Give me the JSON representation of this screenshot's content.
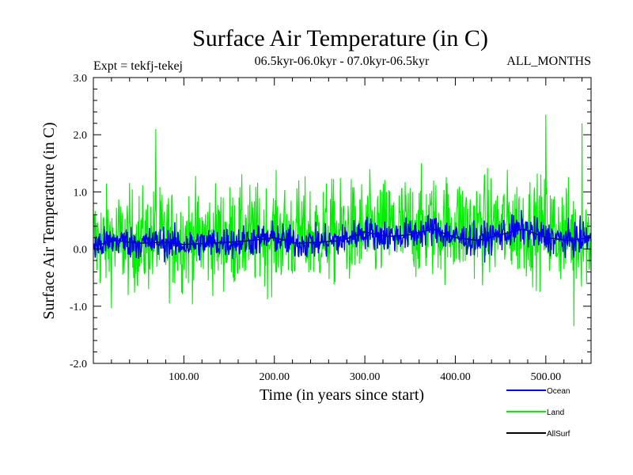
{
  "chart_data": {
    "type": "line",
    "title": "Surface Air Temperature (in C)",
    "subtitle_left": "Expt = tekfj-tekej",
    "subtitle_center": "06.5kyr-06.0kyr - 07.0kyr-06.5kyr",
    "subtitle_right": "ALL_MONTHS",
    "xlabel": "Time (in years since start)",
    "ylabel": "Surface Air Temperature (in C)",
    "xlim": [
      0,
      550
    ],
    "ylim": [
      -2.0,
      3.0
    ],
    "x_ticks": [
      {
        "value": 100,
        "label": "100.00"
      },
      {
        "value": 200,
        "label": "200.00"
      },
      {
        "value": 300,
        "label": "300.00"
      },
      {
        "value": 400,
        "label": "400.00"
      },
      {
        "value": 500,
        "label": "500.00"
      }
    ],
    "y_ticks": [
      {
        "value": -2.0,
        "label": "-2.0"
      },
      {
        "value": -1.0,
        "label": "-1.0"
      },
      {
        "value": 0.0,
        "label": "0.0"
      },
      {
        "value": 1.0,
        "label": "1.0"
      },
      {
        "value": 2.0,
        "label": "2.0"
      },
      {
        "value": 3.0,
        "label": "3.0"
      }
    ],
    "series": [
      {
        "name": "Land",
        "color": "#00ee00",
        "x": [
          0,
          15,
          30,
          45,
          60,
          69,
          75,
          90,
          105,
          120,
          135,
          150,
          165,
          180,
          195,
          210,
          225,
          240,
          255,
          270,
          285,
          300,
          315,
          330,
          345,
          360,
          375,
          390,
          405,
          420,
          435,
          450,
          465,
          477,
          490,
          500,
          510,
          520,
          531,
          540,
          550
        ],
        "values": [
          0.05,
          0.1,
          0.2,
          0.15,
          0.1,
          2.1,
          0.2,
          0.15,
          0.25,
          0.1,
          0.05,
          0.2,
          0.25,
          0.15,
          0.3,
          0.1,
          0.2,
          0.15,
          0.05,
          0.3,
          0.35,
          0.5,
          0.3,
          0.4,
          0.45,
          0.3,
          0.35,
          0.2,
          0.15,
          0.2,
          0.25,
          0.3,
          0.35,
          0.5,
          0.45,
          2.35,
          0.2,
          0.15,
          -1.35,
          2.2,
          0.3
        ]
      },
      {
        "name": "Ocean",
        "color": "#0000ee",
        "x": [
          0,
          25,
          50,
          75,
          100,
          125,
          150,
          175,
          200,
          225,
          250,
          275,
          300,
          325,
          350,
          375,
          400,
          425,
          450,
          475,
          500,
          525,
          550
        ],
        "values": [
          0.05,
          0.15,
          0.1,
          0.12,
          0.08,
          0.1,
          0.12,
          0.15,
          0.2,
          0.1,
          0.12,
          0.15,
          0.3,
          0.22,
          0.25,
          0.35,
          0.2,
          0.15,
          0.25,
          0.35,
          0.2,
          0.15,
          0.2
        ]
      },
      {
        "name": "AllSurf",
        "color": "#000000",
        "x": [
          0,
          25,
          50,
          75,
          100,
          125,
          150,
          175,
          200,
          225,
          250,
          275,
          300,
          325,
          350,
          375,
          400,
          425,
          450,
          475,
          500,
          525,
          550
        ],
        "values": [
          0.05,
          0.15,
          0.1,
          0.12,
          0.08,
          0.1,
          0.12,
          0.15,
          0.2,
          0.1,
          0.12,
          0.15,
          0.3,
          0.22,
          0.25,
          0.35,
          0.2,
          0.15,
          0.25,
          0.35,
          0.2,
          0.15,
          0.2
        ]
      }
    ],
    "legend": {
      "placement": "bottom-right",
      "entries": [
        {
          "label": "Ocean",
          "color": "#0000ee"
        },
        {
          "label": "Land",
          "color": "#00ee00"
        },
        {
          "label": "AllSurf",
          "color": "#000000"
        }
      ]
    }
  }
}
